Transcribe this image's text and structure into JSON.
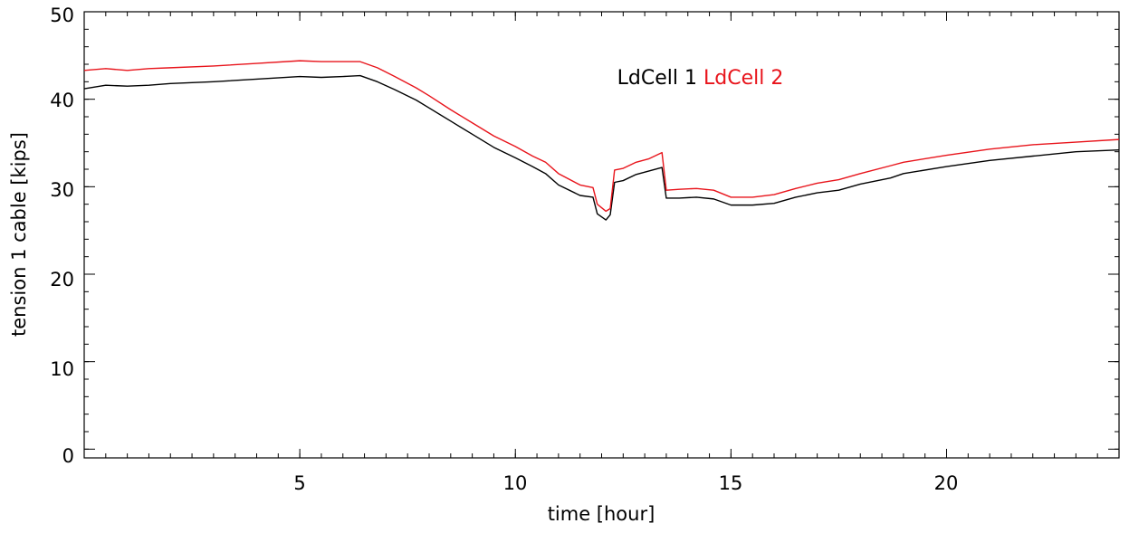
{
  "chart_data": {
    "type": "line",
    "title": "",
    "xlabel": "time [hour]",
    "ylabel": "tension 1 cable [kips]",
    "xlim": [
      0,
      24
    ],
    "ylim": [
      -1,
      50
    ],
    "xticks": [
      5,
      10,
      15,
      20
    ],
    "yticks": [
      0,
      10,
      20,
      30,
      40,
      50
    ],
    "x_tick_labels": [
      "5",
      "10",
      "15",
      "20"
    ],
    "y_tick_labels": [
      "0",
      "10",
      "20",
      "30",
      "40",
      "50"
    ],
    "x_minor_step": 0.5,
    "y_minor_step": 2,
    "grid": false,
    "legend_placement": "top-center",
    "series": [
      {
        "name": "LdCell 1",
        "color": "#000000",
        "points": [
          [
            0,
            41.2
          ],
          [
            0.5,
            41.6
          ],
          [
            1,
            41.5
          ],
          [
            1.5,
            41.6
          ],
          [
            2,
            41.8
          ],
          [
            3,
            42.0
          ],
          [
            4,
            42.3
          ],
          [
            5,
            42.6
          ],
          [
            5.5,
            42.5
          ],
          [
            6,
            42.6
          ],
          [
            6.4,
            42.7
          ],
          [
            6.8,
            42.0
          ],
          [
            7.2,
            41.1
          ],
          [
            7.7,
            39.9
          ],
          [
            8,
            39.0
          ],
          [
            8.5,
            37.5
          ],
          [
            9,
            36.0
          ],
          [
            9.5,
            34.5
          ],
          [
            10,
            33.3
          ],
          [
            10.4,
            32.3
          ],
          [
            10.7,
            31.5
          ],
          [
            11,
            30.2
          ],
          [
            11.5,
            29.0
          ],
          [
            11.8,
            28.8
          ],
          [
            11.9,
            26.9
          ],
          [
            12.1,
            26.2
          ],
          [
            12.2,
            26.8
          ],
          [
            12.3,
            30.5
          ],
          [
            12.5,
            30.7
          ],
          [
            12.8,
            31.4
          ],
          [
            13.1,
            31.8
          ],
          [
            13.4,
            32.2
          ],
          [
            13.5,
            28.7
          ],
          [
            13.8,
            28.7
          ],
          [
            14.2,
            28.8
          ],
          [
            14.6,
            28.6
          ],
          [
            15,
            27.9
          ],
          [
            15.5,
            27.9
          ],
          [
            16,
            28.1
          ],
          [
            16.5,
            28.8
          ],
          [
            17,
            29.3
          ],
          [
            17.5,
            29.6
          ],
          [
            18,
            30.3
          ],
          [
            18.7,
            31.0
          ],
          [
            19,
            31.5
          ],
          [
            20,
            32.3
          ],
          [
            21,
            33.0
          ],
          [
            22,
            33.5
          ],
          [
            23,
            34.0
          ],
          [
            24,
            34.2
          ]
        ]
      },
      {
        "name": "LdCell 2",
        "color": "#e8141b",
        "points": [
          [
            0,
            43.3
          ],
          [
            0.5,
            43.5
          ],
          [
            1,
            43.3
          ],
          [
            1.5,
            43.5
          ],
          [
            2,
            43.6
          ],
          [
            3,
            43.8
          ],
          [
            4,
            44.1
          ],
          [
            5,
            44.4
          ],
          [
            5.5,
            44.3
          ],
          [
            6,
            44.3
          ],
          [
            6.4,
            44.3
          ],
          [
            6.8,
            43.6
          ],
          [
            7.2,
            42.6
          ],
          [
            7.7,
            41.3
          ],
          [
            8,
            40.4
          ],
          [
            8.5,
            38.8
          ],
          [
            9,
            37.3
          ],
          [
            9.5,
            35.8
          ],
          [
            10,
            34.6
          ],
          [
            10.4,
            33.5
          ],
          [
            10.7,
            32.8
          ],
          [
            11,
            31.5
          ],
          [
            11.5,
            30.2
          ],
          [
            11.8,
            29.9
          ],
          [
            11.9,
            28.0
          ],
          [
            12.1,
            27.2
          ],
          [
            12.2,
            27.5
          ],
          [
            12.3,
            31.9
          ],
          [
            12.5,
            32.1
          ],
          [
            12.8,
            32.8
          ],
          [
            13.1,
            33.2
          ],
          [
            13.4,
            33.9
          ],
          [
            13.5,
            29.6
          ],
          [
            13.8,
            29.7
          ],
          [
            14.2,
            29.8
          ],
          [
            14.6,
            29.6
          ],
          [
            15,
            28.8
          ],
          [
            15.5,
            28.8
          ],
          [
            16,
            29.1
          ],
          [
            16.5,
            29.8
          ],
          [
            17,
            30.4
          ],
          [
            17.5,
            30.8
          ],
          [
            18,
            31.5
          ],
          [
            18.7,
            32.4
          ],
          [
            19,
            32.8
          ],
          [
            20,
            33.6
          ],
          [
            21,
            34.3
          ],
          [
            22,
            34.8
          ],
          [
            23,
            35.1
          ],
          [
            24,
            35.4
          ]
        ]
      }
    ]
  }
}
